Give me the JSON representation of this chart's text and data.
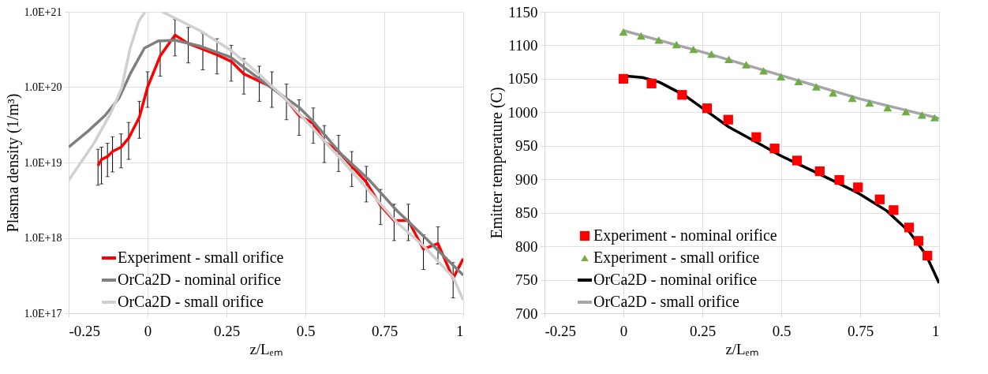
{
  "chart_data": [
    {
      "type": "line",
      "xlabel": "z/Lₑₘ",
      "ylabel": "Plasma density (1/m³)",
      "log": "y",
      "grid": true,
      "legend": "bottom left",
      "xlim": [
        -0.25,
        1
      ],
      "xticks": [
        -0.25,
        0,
        0.25,
        0.5,
        0.75,
        1
      ],
      "ylim": [
        1e+17,
        1e+21
      ],
      "yticks": [
        {
          "value": 1e+17,
          "label": "1.0E+17"
        },
        {
          "value": 1e+18,
          "label": "1.0E+18"
        },
        {
          "value": 1e+19,
          "label": "1.0E+19"
        },
        {
          "value": 1e+20,
          "label": "1.0E+20"
        },
        {
          "value": 1e+21,
          "label": "1.0E+21"
        }
      ],
      "series": [
        {
          "name": "Experiment - small orifice",
          "color": "#ff0000",
          "x": [
            -0.157,
            -0.146,
            -0.127,
            -0.111,
            -0.084,
            -0.06,
            -0.026,
            0.0,
            0.04,
            0.087,
            0.129,
            0.175,
            0.22,
            0.265,
            0.305,
            0.354,
            0.394,
            0.44,
            0.48,
            0.525,
            0.56,
            0.605,
            0.647,
            0.693,
            0.738,
            0.781,
            0.826,
            0.874,
            0.92,
            0.968,
            1.0
          ],
          "values": [
            9.1e+18,
            1.1e+19,
            1.2e+19,
            1.4e+19,
            1.6e+19,
            2.1e+19,
            4e+19,
            1e+20,
            2.6e+20,
            4.9e+20,
            3.8e+20,
            3.2e+20,
            2.7e+20,
            2.2e+20,
            1.5e+20,
            1.2e+20,
            1e+20,
            6.8e+19,
            4.2e+19,
            3.3e+19,
            1.9e+19,
            1.4e+19,
            8.9e+18,
            5.5e+18,
            2.7e+18,
            1.7e+18,
            1.7e+18,
            7.1e+17,
            8.4e+17,
            2.9e+17,
            5.3e+17
          ],
          "errors": [
            [
              5e+18,
              1.5e+19
            ],
            [
              5.2e+18,
              1.6e+19
            ],
            [
              6.5e+18,
              1.8e+19
            ],
            [
              7.5e+18,
              2.2e+19
            ],
            [
              8.5e+18,
              2.4e+19
            ],
            [
              1.1e+19,
              3.4e+19
            ],
            [
              2.1e+19,
              6.5e+19
            ],
            [
              5.4e+19,
              1.6e+20
            ],
            [
              1.4e+20,
              4.2e+20
            ],
            [
              2.6e+20,
              7.9e+20
            ],
            [
              2.1e+20,
              6.2e+20
            ],
            [
              1.7e+20,
              5.2e+20
            ],
            [
              1.5e+20,
              4.4e+20
            ],
            [
              1.2e+20,
              3.6e+20
            ],
            [
              8.1e+19,
              2.4e+20
            ],
            [
              6.5e+19,
              1.9e+20
            ],
            [
              5.4e+19,
              1.6e+20
            ],
            [
              3.7e+19,
              1.1e+20
            ],
            [
              2.3e+19,
              6.8e+19
            ],
            [
              1.8e+19,
              5.3e+19
            ],
            [
              1e+19,
              3.1e+19
            ],
            [
              7.6e+18,
              2.3e+19
            ],
            [
              4.8e+18,
              1.4e+19
            ],
            [
              3e+18,
              8.9e+18
            ],
            [
              1.5e+18,
              4.4e+18
            ],
            [
              9.2e+17,
              2.8e+18
            ],
            [
              9.2e+17,
              2.8e+18
            ],
            [
              3.8e+17,
              1.1e+18
            ],
            [
              4.5e+17,
              1.4e+18
            ],
            [
              1.6e+17,
              4.7e+17
            ],
            null
          ]
        },
        {
          "name": "OrCa2D - nominal orifice",
          "color": "#7f7f7f",
          "x": [
            -0.25,
            -0.189,
            -0.135,
            -0.09,
            -0.055,
            -0.01,
            0.033,
            0.087,
            0.167,
            0.263,
            0.3,
            0.39,
            0.48,
            0.525,
            0.613,
            0.7,
            0.79,
            0.88,
            1.0
          ],
          "values": [
            1.6e+19,
            2.6e+19,
            4.2e+19,
            7.2e+19,
            1.5e+20,
            3.3e+20,
            4.1e+20,
            4.2e+20,
            3.5e+20,
            2.5e+20,
            1.9e+20,
            1e+20,
            5.4e+19,
            3.5e+19,
            1.3e+19,
            6e+18,
            2.3e+18,
            1e+18,
            3.2e+17
          ]
        },
        {
          "name": "OrCa2D - small orifice",
          "color": "#d0d0d0",
          "x": [
            -0.25,
            -0.17,
            -0.117,
            -0.082,
            -0.055,
            -0.028,
            -0.008,
            0.02,
            0.047,
            0.167,
            0.263,
            0.345,
            0.434,
            0.525,
            0.613,
            0.7,
            0.79,
            0.88,
            0.968,
            1.0
          ],
          "values": [
            5.8e+18,
            1.8e+19,
            4.5e+19,
            9.8e+19,
            3.3e+20,
            7.5e+20,
            1e+21,
            null,
            1e+21,
            5.6e+20,
            3.1e+20,
            1.6e+20,
            7.2e+19,
            2.8e+19,
            1.1e+19,
            4.3e+18,
            1.6e+18,
            7.4e+17,
            3e+17,
            1.5e+17
          ]
        }
      ]
    },
    {
      "type": "line",
      "xlabel": "z/Lₑₘ",
      "ylabel": "Emitter temperature (C)",
      "grid": true,
      "legend": "bottom left",
      "xlim": [
        -0.25,
        1
      ],
      "xticks": [
        -0.25,
        0,
        0.25,
        0.5,
        0.75,
        1
      ],
      "ylim": [
        700,
        1150
      ],
      "yticks": [
        700,
        750,
        800,
        850,
        900,
        950,
        1000,
        1050,
        1100,
        1150
      ],
      "series": [
        {
          "name": "Experiment - nominal orifice",
          "type": "scatter",
          "marker": "square",
          "color": "#ff0000",
          "x": [
            0.0,
            0.089,
            0.186,
            0.265,
            0.332,
            0.421,
            0.479,
            0.55,
            0.622,
            0.684,
            0.743,
            0.812,
            0.856,
            0.905,
            0.935,
            0.963
          ],
          "values": [
            1050,
            1043,
            1026,
            1006,
            989,
            963,
            946,
            928,
            912,
            899,
            888,
            870,
            854,
            828,
            808,
            786
          ]
        },
        {
          "name": "Experiment - small orifice",
          "type": "scatter",
          "marker": "triangle",
          "color": "#70ad47",
          "x": [
            0.0,
            0.056,
            0.112,
            0.168,
            0.222,
            0.279,
            0.334,
            0.389,
            0.444,
            0.499,
            0.555,
            0.611,
            0.664,
            0.725,
            0.78,
            0.837,
            0.895,
            0.946,
            0.986
          ],
          "values": [
            1120,
            1114,
            1108,
            1101,
            1094,
            1087,
            1079,
            1071,
            1062,
            1053,
            1046,
            1038,
            1029,
            1021,
            1014,
            1007,
            1001,
            996,
            992
          ]
        },
        {
          "name": "OrCa2D - nominal orifice",
          "color": "#000000",
          "x": [
            0.0,
            0.012,
            0.061,
            0.114,
            0.195,
            0.257,
            0.334,
            0.423,
            0.499,
            0.584,
            0.673,
            0.745,
            0.834,
            0.905,
            0.959,
            1.0
          ],
          "values": [
            1054,
            1054,
            1052,
            1045,
            1025,
            1004,
            978,
            955,
            935,
            916,
            896,
            879,
            853,
            822,
            787,
            745
          ]
        },
        {
          "name": "OrCa2D  - small orifice",
          "color": "#a6a6a6",
          "x": [
            0.0,
            0.25,
            0.5,
            0.75,
            1.0
          ],
          "values": [
            1122,
            1090,
            1055,
            1020,
            991
          ]
        }
      ]
    }
  ]
}
